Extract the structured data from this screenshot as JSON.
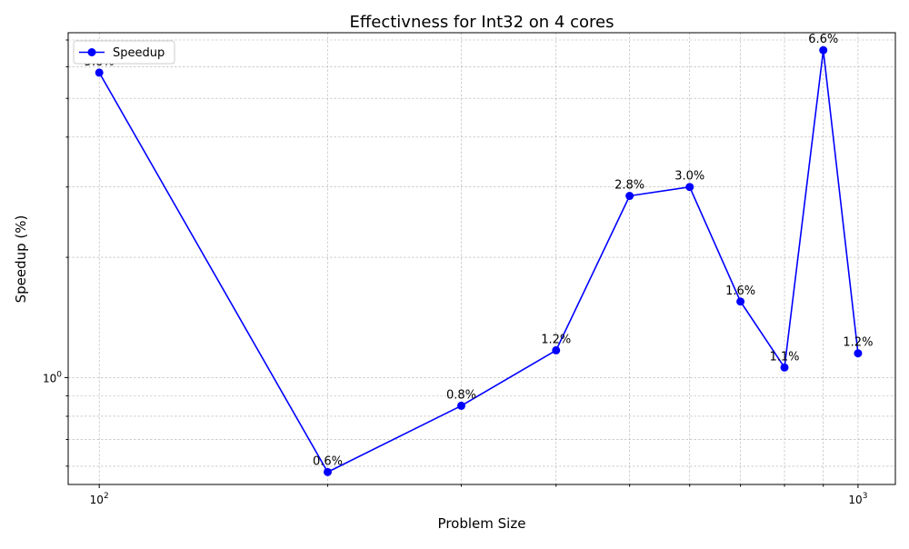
{
  "chart_data": {
    "type": "line",
    "title": "Effectivness for Int32 on 4 cores",
    "xlabel": "Problem Size",
    "ylabel": "Speedup (%)",
    "x_scale": "log",
    "y_scale": "log",
    "xlim": [
      91,
      1120
    ],
    "ylim": [
      0.54,
      7.3
    ],
    "grid": true,
    "legend_position": "top-left",
    "x_ticks": [
      {
        "value": 100,
        "label": "10",
        "exp": "2"
      },
      {
        "value": 1000,
        "label": "10",
        "exp": "3"
      }
    ],
    "y_ticks": [
      {
        "value": 1,
        "label": "10",
        "exp": "0"
      }
    ],
    "series": [
      {
        "name": "Speedup",
        "color": "#0000ff",
        "x": [
          100,
          200,
          300,
          400,
          500,
          600,
          700,
          800,
          900,
          1000
        ],
        "y": [
          5.8,
          0.58,
          0.85,
          1.17,
          2.85,
          3.0,
          1.55,
          1.06,
          6.6,
          1.15
        ],
        "labels": [
          "5.8%",
          "0.6%",
          "0.8%",
          "1.2%",
          "2.8%",
          "3.0%",
          "1.6%",
          "1.1%",
          "6.6%",
          "1.2%"
        ]
      }
    ]
  }
}
